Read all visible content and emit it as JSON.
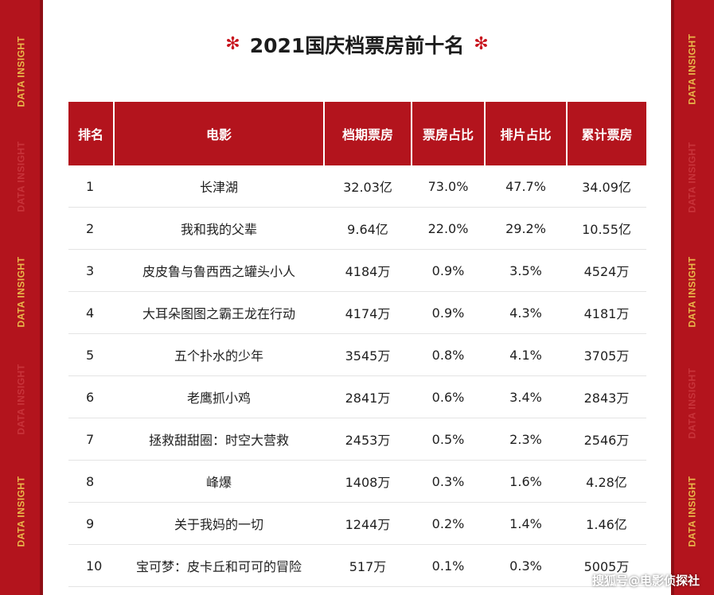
{
  "colors": {
    "brand_red": "#b3141d",
    "band_text": "#e8b84a"
  },
  "side_band_text": "DATA INSIGHT",
  "title": "2021国庆档票房前十名",
  "title_deco": "✻",
  "table": {
    "headers": [
      "排名",
      "电影",
      "档期票房",
      "票房占比",
      "排片占比",
      "累计票房"
    ],
    "rows": [
      [
        "1",
        "长津湖",
        "32.03亿",
        "73.0%",
        "47.7%",
        "34.09亿"
      ],
      [
        "2",
        "我和我的父辈",
        "9.64亿",
        "22.0%",
        "29.2%",
        "10.55亿"
      ],
      [
        "3",
        "皮皮鲁与鲁西西之罐头小人",
        "4184万",
        "0.9%",
        "3.5%",
        "4524万"
      ],
      [
        "4",
        "大耳朵图图之霸王龙在行动",
        "4174万",
        "0.9%",
        "4.3%",
        "4181万"
      ],
      [
        "5",
        "五个扑水的少年",
        "3545万",
        "0.8%",
        "4.1%",
        "3705万"
      ],
      [
        "6",
        "老鹰抓小鸡",
        "2841万",
        "0.6%",
        "3.4%",
        "2843万"
      ],
      [
        "7",
        "拯救甜甜圈：时空大营救",
        "2453万",
        "0.5%",
        "2.3%",
        "2546万"
      ],
      [
        "8",
        "峰爆",
        "1408万",
        "0.3%",
        "1.6%",
        "4.28亿"
      ],
      [
        "9",
        "关于我妈的一切",
        "1244万",
        "0.2%",
        "1.4%",
        "1.46亿"
      ],
      [
        "10",
        "宝可梦：皮卡丘和可可的冒险",
        "517万",
        "0.1%",
        "0.3%",
        "5005万"
      ]
    ]
  },
  "watermark": "搜狐号@电影侦探社"
}
